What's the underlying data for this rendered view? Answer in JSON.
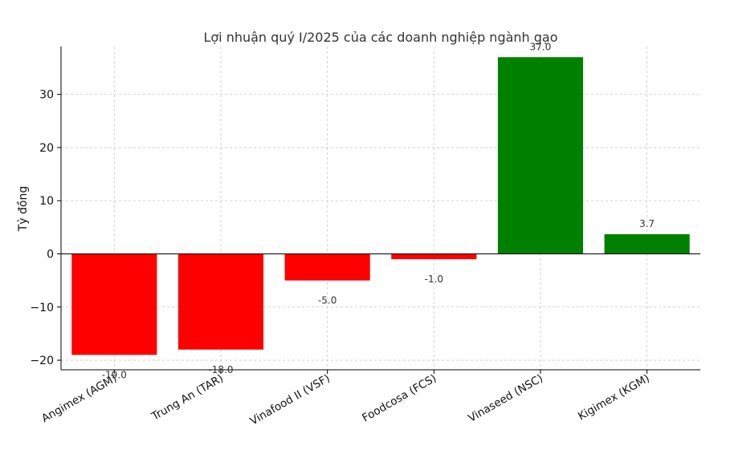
{
  "chart_data": {
    "type": "bar",
    "title": "Lợi nhuận quý I/2025 của các doanh nghiệp ngành gạo",
    "xlabel": "",
    "ylabel": "Tỷ đồng",
    "categories": [
      "Angimex (AGM)",
      "Trung An (TAR)",
      "Vinafood II (VSF)",
      "Foodcosa (FCS)",
      "Vinaseed (NSC)",
      "Kigimex (KGM)"
    ],
    "values": [
      -19.0,
      -18.0,
      -5.0,
      -1.0,
      37.0,
      3.7
    ],
    "data_labels": [
      "-19.0",
      "-18.0",
      "-5.0",
      "-1.0",
      "37.0",
      "3.7"
    ],
    "yticks": [
      -20,
      -10,
      0,
      10,
      20,
      30
    ],
    "ytick_labels": [
      "−20",
      "−10",
      "0",
      "10",
      "20",
      "30"
    ],
    "ylim": [
      -21.8,
      39.0
    ],
    "grid": true,
    "colors": {
      "positive": "#008000",
      "negative": "#ff0000"
    }
  }
}
